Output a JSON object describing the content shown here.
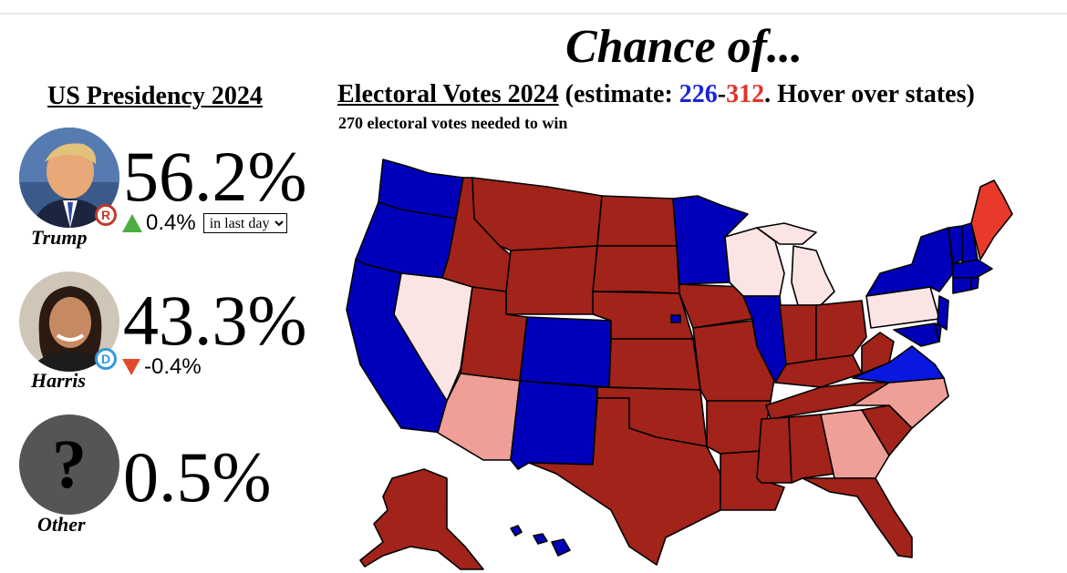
{
  "headline": "Chance of...",
  "left_panel": {
    "title": "US Presidency 2024",
    "candidates": [
      {
        "name": "Trump",
        "percent": "56.2%",
        "party_letter": "R",
        "party_color": "#c0392b",
        "change": "0.4%",
        "change_direction": "up",
        "period": "in last day"
      },
      {
        "name": "Harris",
        "percent": "43.3%",
        "party_letter": "D",
        "party_color": "#3498db",
        "change": "-0.4%",
        "change_direction": "down"
      },
      {
        "name": "Other",
        "percent": "0.5%",
        "avatar_glyph": "?"
      }
    ],
    "period_options": [
      "in last day"
    ]
  },
  "electoral": {
    "title_underlined": "Electoral Votes 2024",
    "title_paren_open": " (estimate: ",
    "dem_votes": "226",
    "dash": "-",
    "rep_votes": "312",
    "title_tail": ". Hover over states)",
    "subtitle": "270 electoral votes needed to win",
    "dem_color": "#1a24d6",
    "rep_color": "#e0342a"
  },
  "map_colors": {
    "safe_dem": "#0000bb",
    "likely_dem": "#0a17e0",
    "safe_rep": "#a1231a",
    "likely_rep": "#e8392b",
    "lean_rep": "#ef9e98",
    "tossup": "#fbe4e4"
  }
}
